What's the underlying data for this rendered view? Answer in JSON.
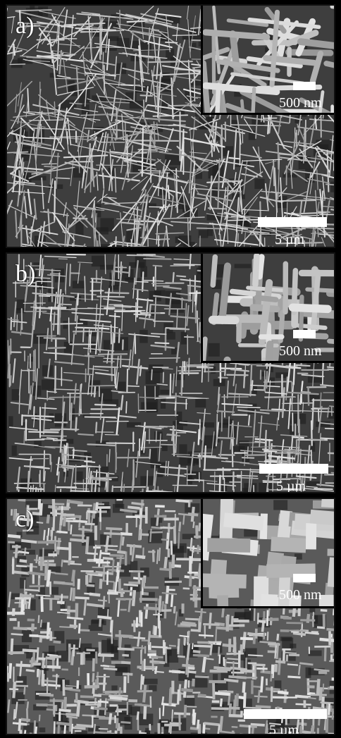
{
  "panels": [
    {
      "letter": "a)",
      "inset_scale": "500 nm",
      "main_scale": "5 µm"
    },
    {
      "letter": "b)",
      "inset_scale": "500 nm",
      "main_scale": "5 µm"
    },
    {
      "letter": "c)",
      "inset_scale": "500 nm",
      "main_scale": "5 µm"
    }
  ],
  "colors": {
    "background": "#4a4a4a",
    "fiber": "#c8c8c8",
    "frame": "#000000",
    "text": "#ffffff"
  }
}
